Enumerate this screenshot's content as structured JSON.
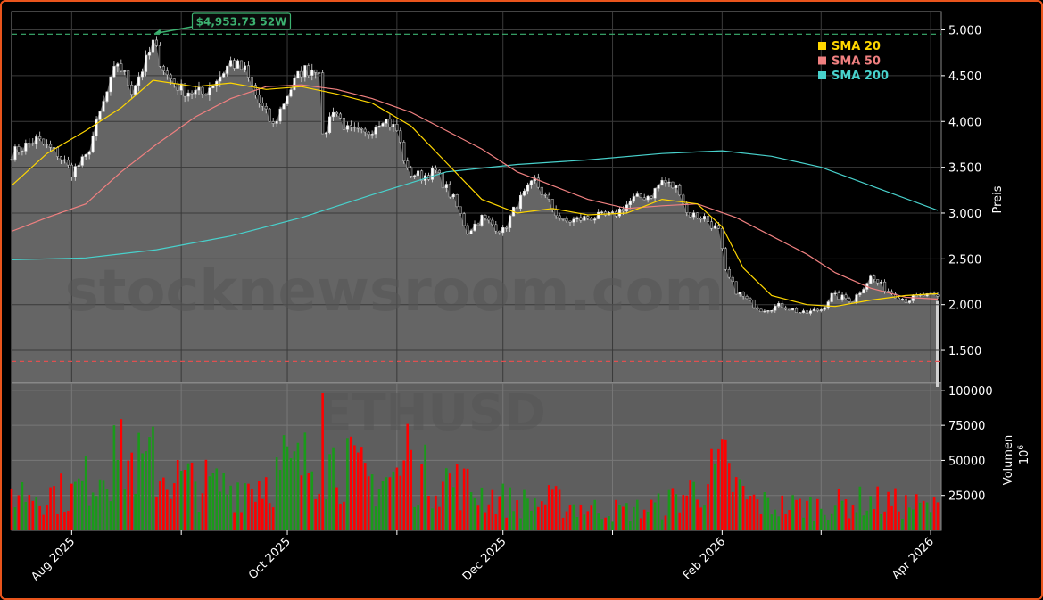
{
  "chart_data": {
    "type": "candlestick",
    "symbol": "ETHUSD",
    "watermark": "stocknewsroom.com",
    "price_axis": {
      "label": "Preis",
      "ylim": [
        1150,
        5200
      ],
      "ticks": [
        "1.500",
        "2.000",
        "2.500",
        "3.000",
        "3.500",
        "4.000",
        "4.500",
        "5.000"
      ],
      "tick_values": [
        1500,
        2000,
        2500,
        3000,
        3500,
        4000,
        4500,
        5000
      ]
    },
    "volume_axis": {
      "label": "Volumen",
      "exponent_label": "10",
      "exponent": "6",
      "ylim": [
        0,
        105000
      ],
      "ticks": [
        "25000",
        "50000",
        "75000",
        "100000"
      ],
      "tick_values": [
        25000,
        50000,
        75000,
        100000
      ]
    },
    "x_axis": {
      "start": "2025-07-15",
      "end": "2026-04-04",
      "ticks": [
        {
          "label": "Aug 2025",
          "date": "2025-08-01"
        },
        {
          "label": "Oct 2025",
          "date": "2025-10-01"
        },
        {
          "label": "Dec 2025",
          "date": "2025-12-01"
        },
        {
          "label": "Feb 2026",
          "date": "2026-02-01"
        },
        {
          "label": "Apr 2026",
          "date": "2026-04-01"
        }
      ],
      "minor_ticks": [
        "2025-09-01",
        "2025-11-01",
        "2026-01-01",
        "2026-03-01"
      ]
    },
    "high_52w": {
      "value": 4953.73,
      "label": "$4,953.73 52W",
      "date": "2025-08-24",
      "color": "#3cb371"
    },
    "low_line": {
      "value": 1380,
      "color": "#e05050"
    },
    "legend": [
      {
        "label": "SMA 20",
        "color": "#ffd700"
      },
      {
        "label": "SMA 50",
        "color": "#f08080"
      },
      {
        "label": "SMA 200",
        "color": "#48d1cc"
      }
    ],
    "sma20_points": [
      [
        "2025-07-15",
        3300
      ],
      [
        "2025-07-25",
        3650
      ],
      [
        "2025-08-05",
        3900
      ],
      [
        "2025-08-15",
        4150
      ],
      [
        "2025-08-24",
        4450
      ],
      [
        "2025-09-05",
        4380
      ],
      [
        "2025-09-15",
        4420
      ],
      [
        "2025-09-25",
        4350
      ],
      [
        "2025-10-05",
        4380
      ],
      [
        "2025-10-15",
        4300
      ],
      [
        "2025-10-25",
        4200
      ],
      [
        "2025-11-05",
        3950
      ],
      [
        "2025-11-15",
        3550
      ],
      [
        "2025-11-25",
        3150
      ],
      [
        "2025-12-05",
        3000
      ],
      [
        "2025-12-15",
        3050
      ],
      [
        "2025-12-25",
        2980
      ],
      [
        "2026-01-05",
        3000
      ],
      [
        "2026-01-15",
        3150
      ],
      [
        "2026-01-25",
        3100
      ],
      [
        "2026-02-01",
        2850
      ],
      [
        "2026-02-07",
        2400
      ],
      [
        "2026-02-15",
        2100
      ],
      [
        "2026-02-25",
        2000
      ],
      [
        "2026-03-05",
        1980
      ],
      [
        "2026-03-15",
        2050
      ],
      [
        "2026-03-25",
        2100
      ],
      [
        "2026-04-03",
        2120
      ]
    ],
    "sma50_points": [
      [
        "2025-07-15",
        2800
      ],
      [
        "2025-07-25",
        2950
      ],
      [
        "2025-08-05",
        3100
      ],
      [
        "2025-08-15",
        3450
      ],
      [
        "2025-08-25",
        3750
      ],
      [
        "2025-09-05",
        4050
      ],
      [
        "2025-09-15",
        4250
      ],
      [
        "2025-09-25",
        4380
      ],
      [
        "2025-10-05",
        4400
      ],
      [
        "2025-10-15",
        4350
      ],
      [
        "2025-10-25",
        4250
      ],
      [
        "2025-11-05",
        4100
      ],
      [
        "2025-11-15",
        3900
      ],
      [
        "2025-11-25",
        3700
      ],
      [
        "2025-12-05",
        3450
      ],
      [
        "2025-12-15",
        3300
      ],
      [
        "2025-12-25",
        3150
      ],
      [
        "2026-01-05",
        3050
      ],
      [
        "2026-01-15",
        3080
      ],
      [
        "2026-01-25",
        3100
      ],
      [
        "2026-02-05",
        2950
      ],
      [
        "2026-02-15",
        2750
      ],
      [
        "2026-02-25",
        2550
      ],
      [
        "2026-03-05",
        2350
      ],
      [
        "2026-03-15",
        2180
      ],
      [
        "2026-03-25",
        2080
      ],
      [
        "2026-04-03",
        2060
      ]
    ],
    "sma200_points": [
      [
        "2025-07-15",
        2490
      ],
      [
        "2025-08-05",
        2510
      ],
      [
        "2025-08-25",
        2600
      ],
      [
        "2025-09-15",
        2750
      ],
      [
        "2025-10-05",
        2950
      ],
      [
        "2025-10-25",
        3200
      ],
      [
        "2025-11-15",
        3450
      ],
      [
        "2025-12-05",
        3530
      ],
      [
        "2025-12-25",
        3580
      ],
      [
        "2026-01-15",
        3650
      ],
      [
        "2026-02-01",
        3680
      ],
      [
        "2026-02-15",
        3620
      ],
      [
        "2026-03-01",
        3500
      ],
      [
        "2026-03-15",
        3300
      ],
      [
        "2026-04-03",
        3030
      ]
    ],
    "price_anchors": [
      [
        "2025-07-15",
        3650
      ],
      [
        "2025-07-22",
        3800
      ],
      [
        "2025-07-28",
        3650
      ],
      [
        "2025-08-01",
        3450
      ],
      [
        "2025-08-05",
        3600
      ],
      [
        "2025-08-10",
        4200
      ],
      [
        "2025-08-14",
        4650
      ],
      [
        "2025-08-18",
        4350
      ],
      [
        "2025-08-22",
        4650
      ],
      [
        "2025-08-24",
        4850
      ],
      [
        "2025-08-28",
        4500
      ],
      [
        "2025-09-01",
        4350
      ],
      [
        "2025-09-07",
        4300
      ],
      [
        "2025-09-12",
        4500
      ],
      [
        "2025-09-15",
        4650
      ],
      [
        "2025-09-19",
        4550
      ],
      [
        "2025-09-23",
        4200
      ],
      [
        "2025-09-27",
        3950
      ],
      [
        "2025-10-01",
        4300
      ],
      [
        "2025-10-05",
        4550
      ],
      [
        "2025-10-10",
        4600
      ],
      [
        "2025-10-11",
        3800
      ],
      [
        "2025-10-14",
        4150
      ],
      [
        "2025-10-18",
        3900
      ],
      [
        "2025-10-23",
        3850
      ],
      [
        "2025-10-28",
        4050
      ],
      [
        "2025-11-01",
        3900
      ],
      [
        "2025-11-04",
        3450
      ],
      [
        "2025-11-08",
        3400
      ],
      [
        "2025-11-12",
        3450
      ],
      [
        "2025-11-17",
        3150
      ],
      [
        "2025-11-21",
        2800
      ],
      [
        "2025-11-25",
        2950
      ],
      [
        "2025-12-01",
        2800
      ],
      [
        "2025-12-05",
        3100
      ],
      [
        "2025-12-10",
        3350
      ],
      [
        "2025-12-15",
        3050
      ],
      [
        "2025-12-18",
        2900
      ],
      [
        "2025-12-25",
        2950
      ],
      [
        "2026-01-01",
        2970
      ],
      [
        "2026-01-07",
        3150
      ],
      [
        "2026-01-12",
        3200
      ],
      [
        "2026-01-15",
        3350
      ],
      [
        "2026-01-20",
        3250
      ],
      [
        "2026-01-22",
        3000
      ],
      [
        "2026-01-27",
        2950
      ],
      [
        "2026-01-31",
        2800
      ],
      [
        "2026-02-02",
        2350
      ],
      [
        "2026-02-05",
        2150
      ],
      [
        "2026-02-08",
        2050
      ],
      [
        "2026-02-12",
        1950
      ],
      [
        "2026-02-18",
        1990
      ],
      [
        "2026-02-24",
        1900
      ],
      [
        "2026-03-01",
        1950
      ],
      [
        "2026-03-04",
        2100
      ],
      [
        "2026-03-10",
        2050
      ],
      [
        "2026-03-15",
        2300
      ],
      [
        "2026-03-20",
        2150
      ],
      [
        "2026-03-25",
        2050
      ],
      [
        "2026-03-30",
        2100
      ],
      [
        "2026-04-03",
        2080
      ]
    ],
    "volume_anchors": [
      [
        "2025-07-15",
        32000
      ],
      [
        "2025-08-01",
        30000
      ],
      [
        "2025-08-10",
        52000
      ],
      [
        "2025-08-15",
        58000
      ],
      [
        "2025-08-25",
        48000
      ],
      [
        "2025-09-05",
        38000
      ],
      [
        "2025-09-15",
        35000
      ],
      [
        "2025-09-25",
        42000
      ],
      [
        "2025-10-05",
        52000
      ],
      [
        "2025-10-10",
        60000
      ],
      [
        "2025-10-15",
        55000
      ],
      [
        "2025-10-25",
        40000
      ],
      [
        "2025-11-05",
        46000
      ],
      [
        "2025-11-15",
        42000
      ],
      [
        "2025-11-25",
        30000
      ],
      [
        "2025-12-05",
        22000
      ],
      [
        "2025-12-15",
        24000
      ],
      [
        "2025-12-25",
        18000
      ],
      [
        "2026-01-05",
        16000
      ],
      [
        "2026-01-15",
        20000
      ],
      [
        "2026-01-25",
        35000
      ],
      [
        "2026-02-01",
        50000
      ],
      [
        "2026-02-08",
        25000
      ],
      [
        "2026-02-15",
        20000
      ],
      [
        "2026-03-01",
        20000
      ],
      [
        "2026-03-15",
        24000
      ],
      [
        "2026-04-03",
        18000
      ]
    ],
    "volume_spikes": [
      [
        "2025-08-13",
        75000
      ],
      [
        "2025-08-24",
        74000
      ],
      [
        "2025-09-30",
        68000
      ],
      [
        "2025-10-11",
        98000
      ],
      [
        "2025-10-18",
        66000
      ],
      [
        "2025-11-04",
        76000
      ],
      [
        "2026-02-02",
        65000
      ]
    ],
    "colors": {
      "up": "#1a9a1a",
      "down": "#ff0000",
      "candle_up": "#ffffff",
      "candle_down": "#222222",
      "area": "#6a6a6a",
      "panel": "#000000",
      "grid": "#3a3a3a"
    }
  }
}
